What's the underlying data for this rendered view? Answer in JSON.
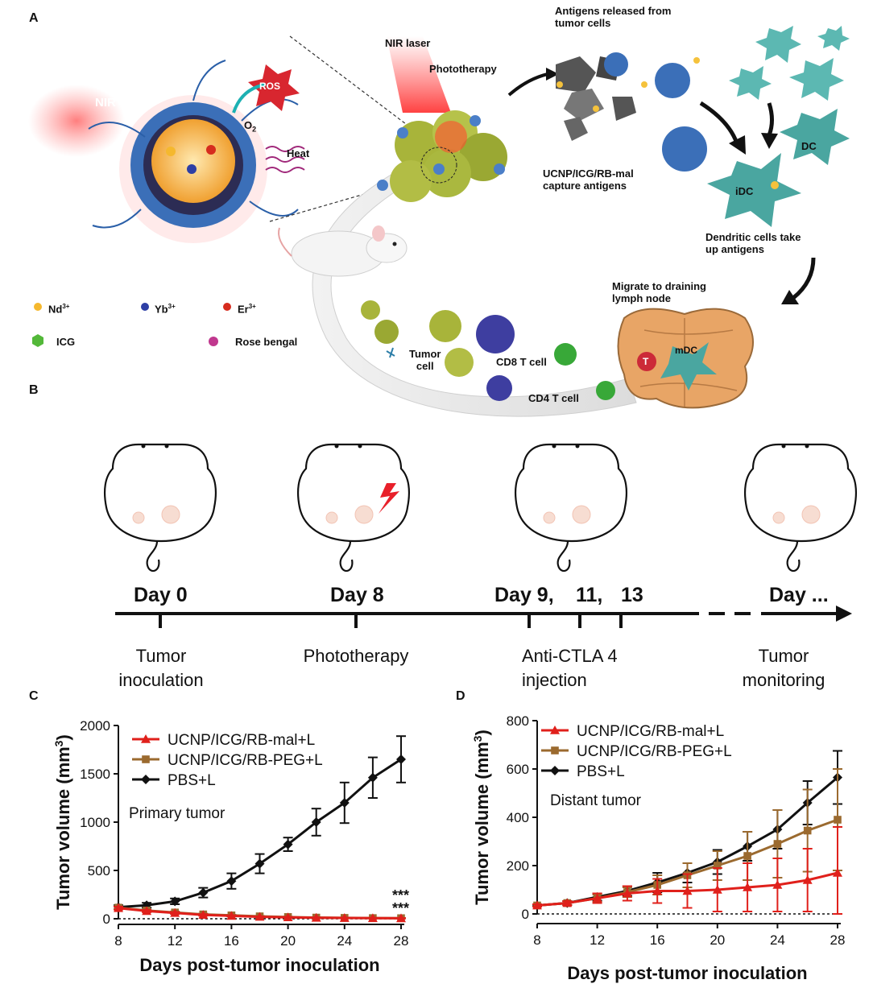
{
  "panels": {
    "a": "A",
    "b": "B",
    "c": "C",
    "d": "D"
  },
  "schematic": {
    "nir": "NIR",
    "ros": "ROS",
    "o2": "O",
    "o2_sub": "2",
    "heat": "Heat",
    "nir_laser": "NIR laser",
    "phototherapy": "Phototherapy",
    "antigens_released_1": "Antigens released from",
    "antigens_released_2": "tumor cells",
    "capture_1": "UCNP/ICG/RB-mal",
    "capture_2": "capture antigens",
    "dc": "DC",
    "idc": "iDC",
    "dendritic_1": "Dendritic cells take",
    "dendritic_2": "up antigens",
    "migrate_1": "Migrate to draining",
    "migrate_2": "lymph node",
    "mdc": "mDC",
    "t": "T",
    "tumor_cell_1": "Tumor",
    "tumor_cell_2": "cell",
    "cd8": "CD8 T cell",
    "cd4": "CD4 T cell",
    "legend": {
      "nd": "Nd",
      "nd_sup": "3+",
      "yb": "Yb",
      "yb_sup": "3+",
      "er": "Er",
      "er_sup": "3+",
      "icg": "ICG",
      "rose": "Rose bengal"
    }
  },
  "timeline": {
    "day0": "Day 0",
    "day8": "Day 8",
    "day9": "Day 9,",
    "day11": "11,",
    "day13": "13",
    "dayn": "Day ...",
    "cap0_1": "Tumor",
    "cap0_2": "inoculation",
    "cap8": "Phototherapy",
    "cap9_1": "Anti-CTLA 4",
    "cap9_2": "injection",
    "capn_1": "Tumor",
    "capn_2": "monitoring"
  },
  "chart_data": [
    {
      "type": "line",
      "panel": "C",
      "annotation": "Primary tumor",
      "significance": [
        "***",
        "***"
      ],
      "xlabel": "Days post-tumor inoculation",
      "ylabel": "Tumor volume (mm",
      "ylabel_sup": "3",
      "ylabel_end": ")",
      "xlim": [
        8,
        28
      ],
      "ylim": [
        0,
        2000
      ],
      "xticks": [
        8,
        12,
        16,
        20,
        24,
        28
      ],
      "yticks": [
        0,
        500,
        1000,
        1500,
        2000
      ],
      "x": [
        8,
        10,
        12,
        14,
        16,
        18,
        20,
        22,
        24,
        26,
        28
      ],
      "series": [
        {
          "name": "UCNP/ICG/RB-mal+L",
          "color": "#e0201b",
          "marker": "triangle",
          "values": [
            110,
            80,
            60,
            40,
            30,
            20,
            15,
            10,
            8,
            6,
            5
          ],
          "err": [
            15,
            12,
            10,
            8,
            6,
            5,
            4,
            3,
            3,
            2,
            2
          ]
        },
        {
          "name": "UCNP/ICG/RB-PEG+L",
          "color": "#9b6a2f",
          "marker": "square",
          "values": [
            115,
            85,
            65,
            45,
            35,
            25,
            18,
            12,
            9,
            7,
            6
          ],
          "err": [
            15,
            12,
            10,
            8,
            6,
            5,
            4,
            3,
            3,
            2,
            2
          ]
        },
        {
          "name": "PBS+L",
          "color": "#111111",
          "marker": "diamond",
          "values": [
            120,
            140,
            180,
            270,
            390,
            570,
            770,
            1000,
            1200,
            1460,
            1650
          ],
          "err": [
            20,
            25,
            30,
            50,
            80,
            100,
            70,
            140,
            210,
            210,
            240
          ]
        }
      ]
    },
    {
      "type": "line",
      "panel": "D",
      "annotation": "Distant tumor",
      "xlabel": "Days post-tumor inoculation",
      "ylabel": "Tumor volume (mm",
      "ylabel_sup": "3",
      "ylabel_end": ")",
      "xlim": [
        8,
        28
      ],
      "ylim": [
        0,
        800
      ],
      "xticks": [
        8,
        12,
        16,
        20,
        24,
        28
      ],
      "yticks": [
        0,
        200,
        400,
        600,
        800
      ],
      "x": [
        8,
        10,
        12,
        14,
        16,
        18,
        20,
        22,
        24,
        26,
        28
      ],
      "series": [
        {
          "name": "UCNP/ICG/RB-mal+L",
          "color": "#e0201b",
          "marker": "triangle",
          "values": [
            35,
            45,
            65,
            85,
            95,
            95,
            100,
            110,
            120,
            140,
            170
          ],
          "err": [
            5,
            8,
            20,
            30,
            50,
            70,
            90,
            100,
            110,
            130,
            190
          ]
        },
        {
          "name": "UCNP/ICG/RB-PEG+L",
          "color": "#9b6a2f",
          "marker": "square",
          "values": [
            35,
            45,
            65,
            90,
            120,
            160,
            200,
            240,
            290,
            345,
            390
          ],
          "err": [
            5,
            8,
            15,
            20,
            40,
            50,
            60,
            100,
            140,
            170,
            210
          ]
        },
        {
          "name": "PBS+L",
          "color": "#111111",
          "marker": "diamond",
          "values": [
            35,
            45,
            70,
            95,
            130,
            170,
            215,
            280,
            350,
            460,
            565
          ],
          "err": [
            5,
            8,
            15,
            20,
            40,
            40,
            50,
            60,
            80,
            90,
            110
          ]
        }
      ]
    }
  ]
}
